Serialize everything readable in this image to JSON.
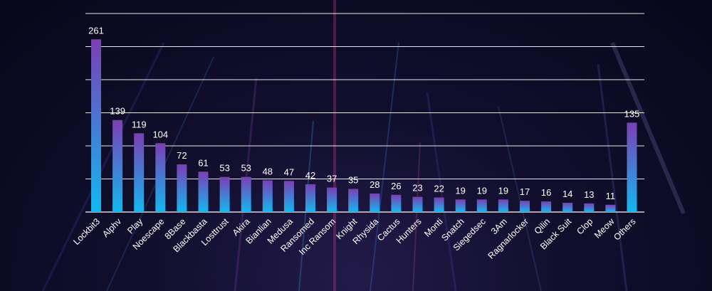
{
  "chart_data": {
    "type": "bar",
    "categories": [
      "Lockbit3",
      "Alphv",
      "Play",
      "Noescape",
      "8Base",
      "Blackbasta",
      "Losttrust",
      "Akira",
      "Bianlian",
      "Medusa",
      "Ransomed",
      "Inc Ransom",
      "Knight",
      "Rhysida",
      "Cactus",
      "Hunters",
      "Monti",
      "Snatch",
      "Siegedsec",
      "3Am",
      "Ragnarlocker",
      "Qilin",
      "Black Suit",
      "Clop",
      "Meow",
      "Others"
    ],
    "values": [
      261,
      139,
      119,
      104,
      72,
      61,
      53,
      53,
      48,
      47,
      42,
      37,
      35,
      28,
      26,
      23,
      22,
      19,
      19,
      19,
      17,
      16,
      14,
      13,
      11,
      135
    ],
    "ylim": [
      0,
      300
    ],
    "grid": true,
    "bar_gradient": {
      "top": "#7b3fb5",
      "bottom": "#12b8f0"
    },
    "background": "#0a0a1e",
    "text_color": "#ffffff"
  }
}
